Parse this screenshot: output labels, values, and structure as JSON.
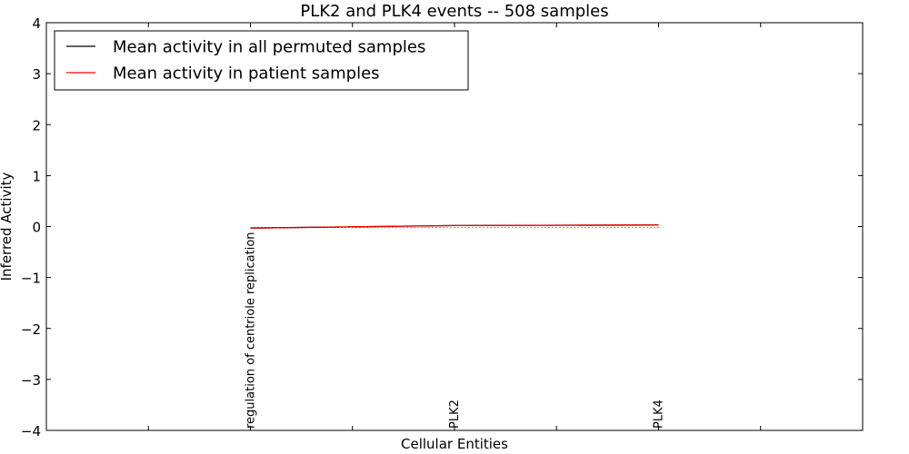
{
  "chart_data": {
    "type": "line",
    "title": "PLK2 and PLK4 events -- 508 samples",
    "xlabel": "Cellular Entities",
    "ylabel": "Inferred Activity",
    "ylim": [
      -4,
      4
    ],
    "yticks": [
      4,
      3,
      2,
      1,
      0,
      -1,
      -2,
      -3,
      -4
    ],
    "ytick_labels": [
      "4",
      "3",
      "2",
      "1",
      "0",
      "−1",
      "−2",
      "−3",
      "−4"
    ],
    "xlim": [
      -1,
      3
    ],
    "categories": [
      "regulation of centriole replication",
      "PLK2",
      "PLK4"
    ],
    "x": [
      0,
      1,
      2
    ],
    "series": [
      {
        "name": "Mean activity in all permuted samples",
        "color": "#000000",
        "style": "solid",
        "values": [
          -0.03,
          0.02,
          0.03
        ]
      },
      {
        "name": "Mean activity in patient samples",
        "color": "#ff0000",
        "style": "solid",
        "values": [
          -0.03,
          0.02,
          0.03
        ]
      },
      {
        "name": "",
        "color": "#000000",
        "style": "dotted",
        "values": [
          -0.02,
          -0.02,
          -0.02
        ]
      }
    ],
    "legend_position": "top-left",
    "grid": false
  }
}
